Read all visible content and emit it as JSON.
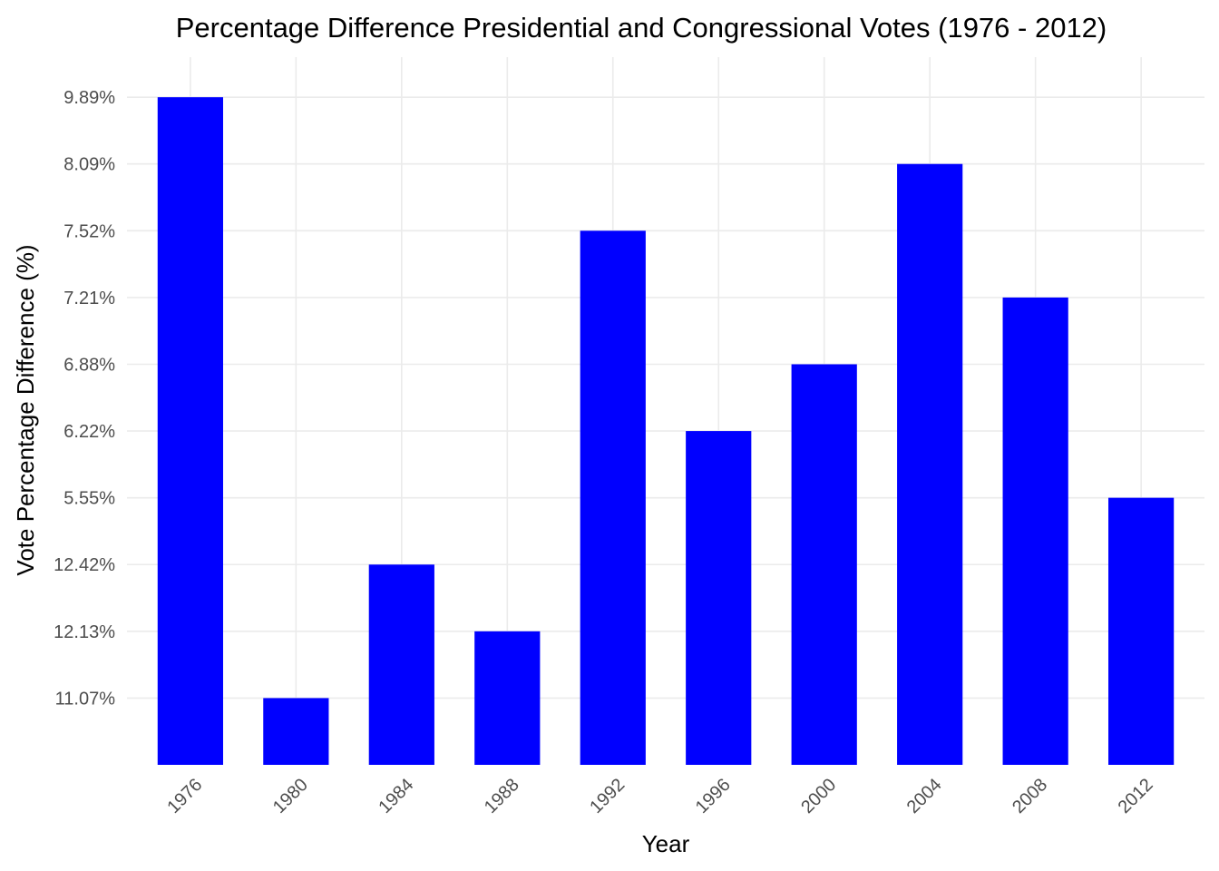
{
  "chart_data": {
    "type": "bar",
    "title": "Percentage Difference Presidential and Congressional Votes (1976 - 2012)",
    "xlabel": "Year",
    "ylabel": "Vote Percentage Difference (%)",
    "categories": [
      "1976",
      "1980",
      "1984",
      "1988",
      "1992",
      "1996",
      "2000",
      "2004",
      "2008",
      "2012"
    ],
    "values": [
      "9.89%",
      "11.07%",
      "12.42%",
      "12.13%",
      "7.52%",
      "6.22%",
      "6.88%",
      "8.09%",
      "7.21%",
      "5.55%"
    ],
    "y_axis": {
      "scale": "discrete",
      "tick_labels": [
        "11.07%",
        "12.13%",
        "12.42%",
        "5.55%",
        "6.22%",
        "6.88%",
        "7.21%",
        "7.52%",
        "8.09%",
        "9.89%"
      ]
    },
    "bar_color": "#0000ff",
    "grid": true,
    "legend": "none"
  }
}
